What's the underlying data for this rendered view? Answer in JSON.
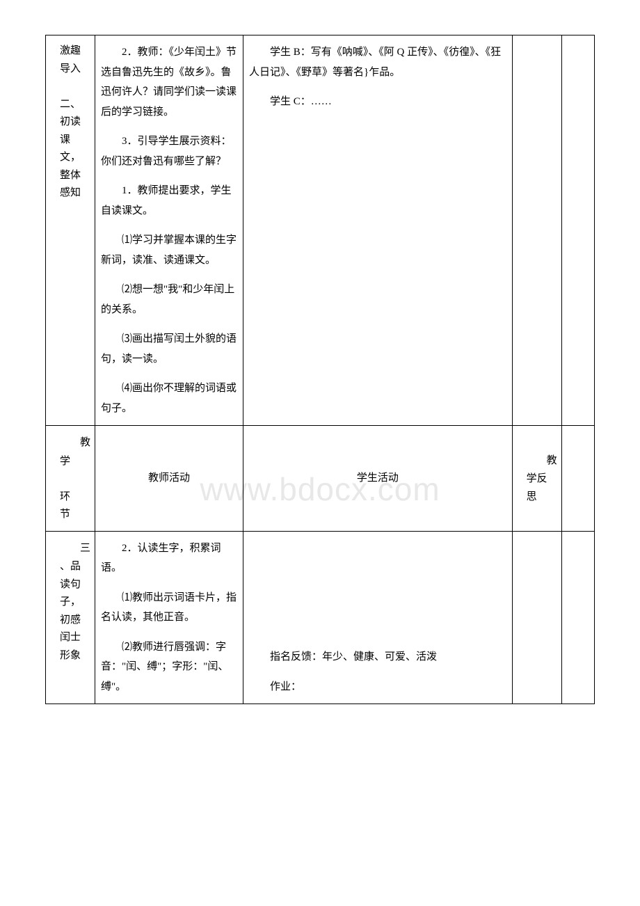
{
  "watermark": "www.bdocx.com",
  "row1": {
    "col1_lines": [
      "激趣导入",
      "",
      "二、初读课文，整体感知"
    ],
    "teacher": [
      "　　2．教师：《少年闰土》节选自鲁迅先生的《故乡》。鲁迅何许人？请同学们读一读课后的学习链接。",
      "　　3．引导学生展示资料：你们还对鲁迅有哪些了解？",
      "　　1．教师提出要求，学生自读课文。",
      "　　⑴学习并掌握本课的生字新词，读准、读通课文。",
      "　　⑵想一想\"我\"和少年闰上的关系。",
      "　　⑶画出描写闰土外貌的语句，读一读。",
      "　　⑷画出你不理解的词语或句子。"
    ],
    "student": [
      "　　学生 B：写有《呐喊》、《阿 Q 正传》、《彷徨》、《狂人日记》、《野草》等著名}乍品。",
      "　　学生 C：……"
    ]
  },
  "headerRow": {
    "col1_char": "教",
    "col1_lines": [
      "学",
      "",
      "环",
      "节"
    ],
    "col2": "教师活动",
    "col3": "学生活动",
    "col4_char": "教",
    "col4_lines": [
      "学反思"
    ]
  },
  "row3": {
    "col1_char": "三",
    "col1_lines": [
      "、品读句子，初感闰士形象"
    ],
    "teacher": [
      "　　2．认读生字，积累词语。",
      "　　⑴教师出示词语卡片，指名认读，其他正音。",
      "　　⑵教师进行唇强调：字音：\"闰、缚\"；字形：\"闰、缚\"。"
    ],
    "student": [
      "　　指名反馈：年少、健康、可爱、活泼",
      "　　作业："
    ]
  }
}
